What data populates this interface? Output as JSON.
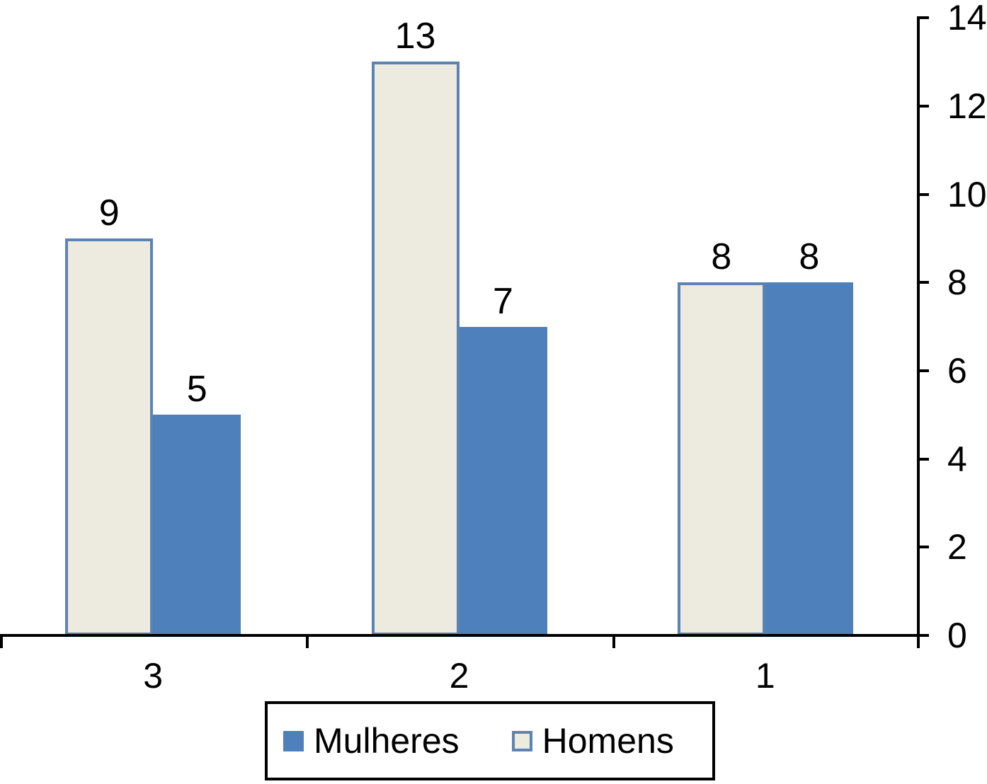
{
  "chart_data": {
    "type": "bar",
    "categories": [
      "3",
      "2",
      "1"
    ],
    "series": [
      {
        "name": "Homens",
        "values": [
          9,
          13,
          8
        ],
        "fill": "#EDEBE0",
        "border": "#5B84B5",
        "has_border": true
      },
      {
        "name": "Mulheres",
        "values": [
          5,
          7,
          8
        ],
        "fill": "#4E80BC",
        "border": "#4E80BC",
        "has_border": false
      }
    ],
    "data_labels_shown": true,
    "ylim": [
      0,
      14
    ],
    "yticks": [
      0,
      2,
      4,
      6,
      8,
      10,
      12,
      14
    ],
    "y_axis_side": "right",
    "grid": false,
    "legend": {
      "position": "bottom",
      "items": [
        {
          "label": "Mulheres",
          "series": "Mulheres"
        },
        {
          "label": "Homens",
          "series": "Homens"
        }
      ]
    },
    "colors": {
      "axis": "#000000",
      "text": "#000000",
      "legend_border": "#000000",
      "background": "#FFFFFF"
    }
  }
}
